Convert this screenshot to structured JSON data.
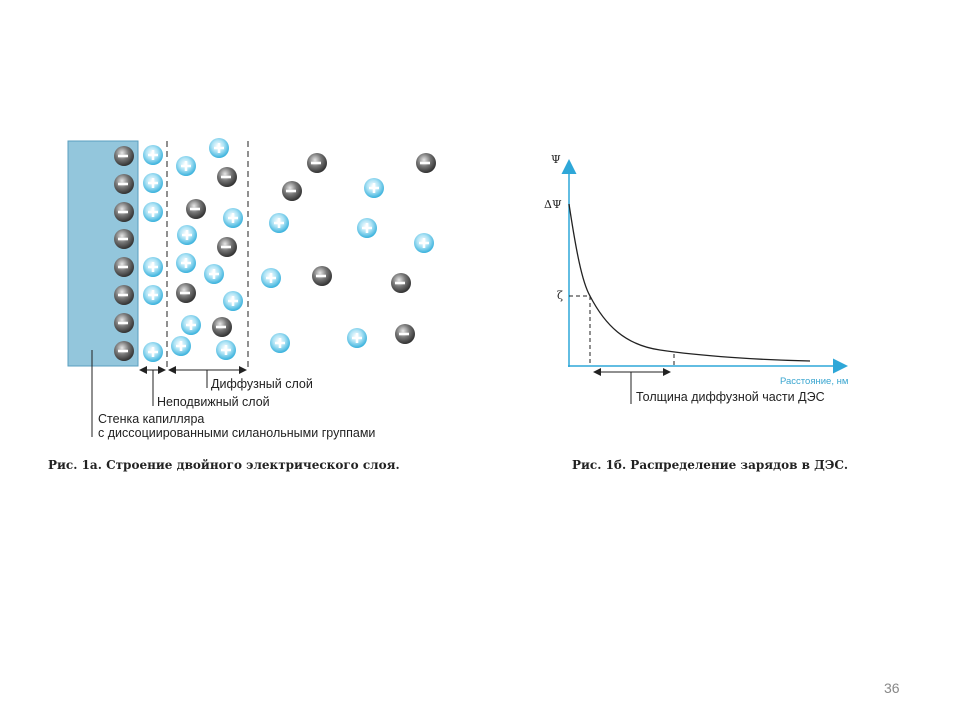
{
  "figure_a": {
    "labels": {
      "diffuse_layer": "Диффузный слой",
      "fixed_layer": "Неподвижный слой",
      "wall_line1": "Стенка капилляра",
      "wall_line2": "с диссоциированными силанольными группами"
    },
    "caption": "Рис. 1а. Строение двойного электрического слоя.",
    "colors": {
      "wall": "#93c6dc",
      "positive_ion": "#4fc0e6",
      "negative_ion": "#5a5a5a"
    }
  },
  "figure_b": {
    "y_axis_label": "Ψ",
    "delta_psi_label": "ΔΨ",
    "zeta_label": "ζ",
    "x_axis_label": "Расстояние, нм",
    "thickness_label": "Толщина диффузной части ДЭС",
    "caption": "Рис. 1б. Распределение зарядов в ДЭС.",
    "colors": {
      "axis": "#2ea7d8",
      "curve": "#222222"
    }
  },
  "page_number": "36"
}
